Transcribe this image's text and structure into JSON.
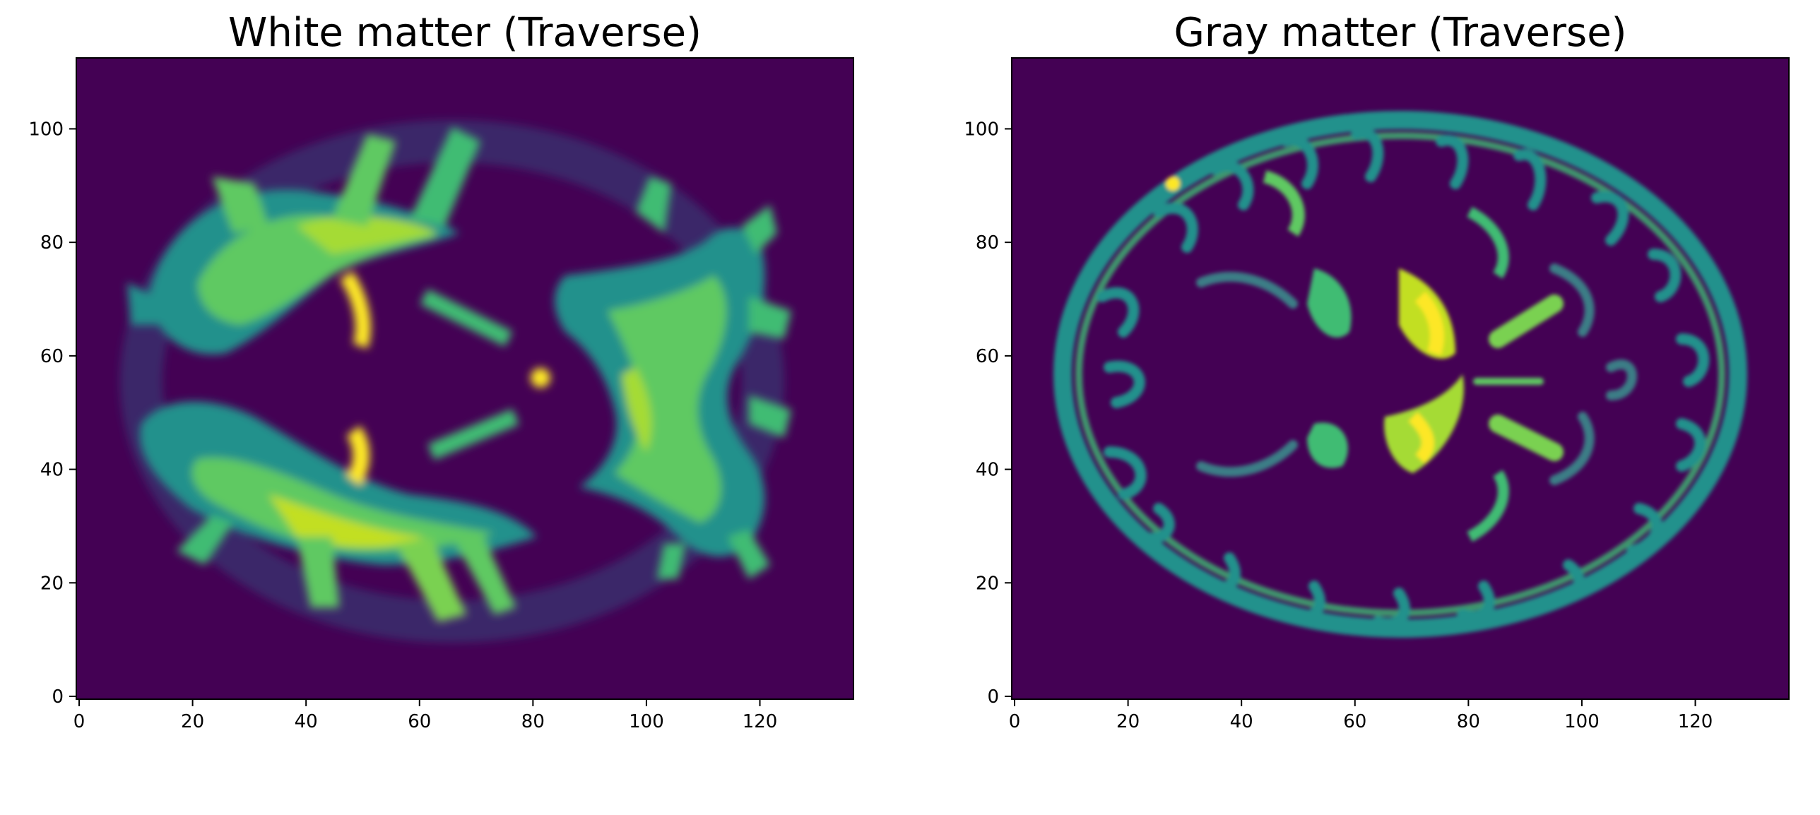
{
  "figure": {
    "background": "#ffffff",
    "panels": [
      {
        "id": "white",
        "title": "White matter (Traverse)",
        "x_ticks": [
          {
            "v": 0,
            "label": "0"
          },
          {
            "v": 20,
            "label": "20"
          },
          {
            "v": 40,
            "label": "40"
          },
          {
            "v": 60,
            "label": "60"
          },
          {
            "v": 80,
            "label": "80"
          },
          {
            "v": 100,
            "label": "100"
          },
          {
            "v": 120,
            "label": "120"
          }
        ],
        "y_ticks": [
          {
            "v": 0,
            "label": "0"
          },
          {
            "v": 20,
            "label": "20"
          },
          {
            "v": 40,
            "label": "40"
          },
          {
            "v": 60,
            "label": "60"
          },
          {
            "v": 80,
            "label": "80"
          },
          {
            "v": 100,
            "label": "100"
          }
        ],
        "xlim": [
          -0.5,
          136.5
        ],
        "ylim": [
          112.5,
          -0.5
        ],
        "image_size": [
          137,
          113
        ],
        "colormap": "viridis"
      },
      {
        "id": "gray",
        "title": "Gray matter (Traverse)",
        "x_ticks": [
          {
            "v": 0,
            "label": "0"
          },
          {
            "v": 20,
            "label": "20"
          },
          {
            "v": 40,
            "label": "40"
          },
          {
            "v": 60,
            "label": "60"
          },
          {
            "v": 80,
            "label": "80"
          },
          {
            "v": 100,
            "label": "100"
          },
          {
            "v": 120,
            "label": "120"
          }
        ],
        "y_ticks": [
          {
            "v": 0,
            "label": "0"
          },
          {
            "v": 20,
            "label": "20"
          },
          {
            "v": 40,
            "label": "40"
          },
          {
            "v": 60,
            "label": "60"
          },
          {
            "v": 80,
            "label": "80"
          },
          {
            "v": 100,
            "label": "100"
          }
        ],
        "xlim": [
          -0.5,
          136.5
        ],
        "ylim": [
          112.5,
          -0.5
        ],
        "image_size": [
          137,
          113
        ],
        "colormap": "viridis"
      }
    ],
    "colors": {
      "background_voxel": "#440154",
      "low": "#3b528b",
      "mid": "#21918c",
      "high": "#5ec962",
      "peak": "#fde725"
    }
  }
}
